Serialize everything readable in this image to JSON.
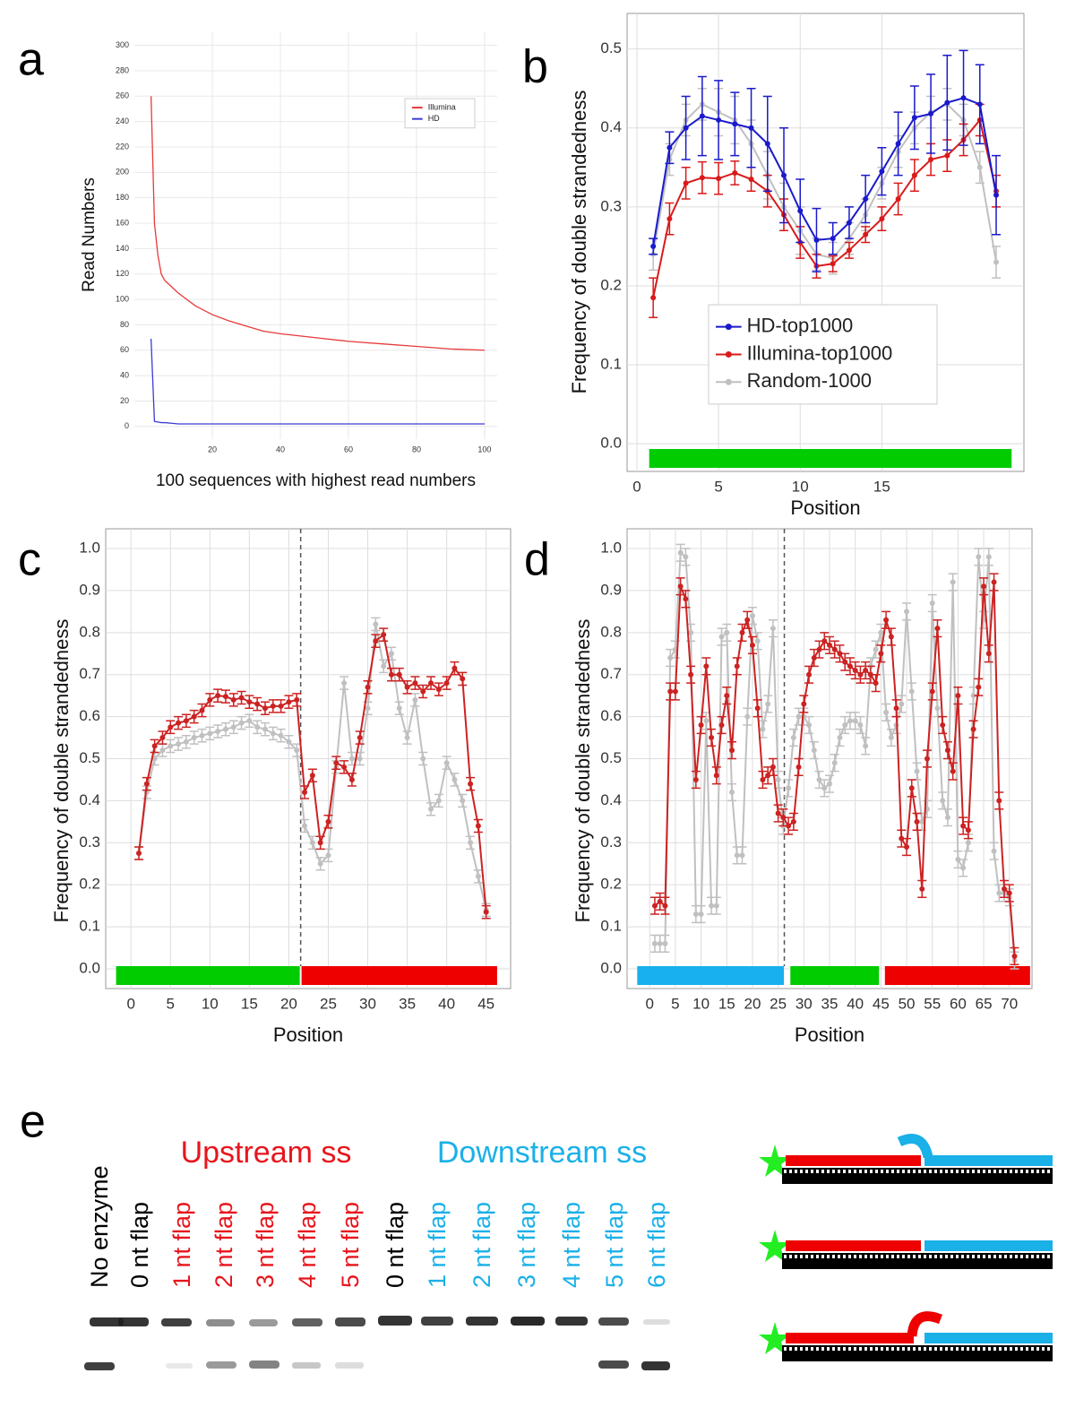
{
  "chart_data": [
    {
      "panel": "a",
      "type": "line",
      "xlabel": "100 sequences with highest read numbers",
      "ylabel": "Read Numbers",
      "xlim": [
        -2.9,
        103.7
      ],
      "ylim": [
        -10,
        311
      ],
      "xticks": [
        20,
        40,
        60,
        80,
        100
      ],
      "yticks": [
        0,
        20,
        40,
        60,
        80,
        100,
        120,
        140,
        160,
        180,
        200,
        220,
        240,
        260,
        280,
        300
      ],
      "grid": true,
      "legend": "upper right",
      "x": [
        2,
        3,
        4,
        5,
        6,
        8,
        10,
        15,
        20,
        25,
        30,
        35,
        40,
        50,
        60,
        70,
        80,
        90,
        100
      ],
      "series": [
        {
          "name": "HD",
          "color": "#3b3bd6",
          "values": [
            69,
            4,
            3.5,
            3,
            3,
            2.5,
            2,
            2,
            2,
            2,
            2,
            2,
            2,
            2,
            2,
            2,
            2,
            2,
            2
          ]
        },
        {
          "name": "Illumina",
          "color": "#e83a3a",
          "values": [
            260,
            160,
            135,
            120,
            115,
            110,
            105,
            95,
            88,
            83,
            79,
            75,
            73,
            70,
            67,
            65,
            63,
            61,
            60
          ]
        }
      ]
    },
    {
      "panel": "b",
      "type": "line",
      "xlabel": "Position",
      "ylabel": "Frequency of double strandedness",
      "xlim": [
        -0.6,
        23.7
      ],
      "ylim": [
        -0.035,
        0.545
      ],
      "xticks": [
        0,
        5,
        10,
        15
      ],
      "yticks": [
        {
          "value": 0,
          "label": "0.0"
        },
        0.1,
        0.2,
        0.3,
        0.4,
        0.5
      ],
      "grid": true,
      "legend": "lower center",
      "regions": [
        {
          "start": 0.7,
          "end": 23.0,
          "color": "#00cc00"
        }
      ],
      "x": [
        1,
        2,
        3,
        4,
        5,
        6,
        7,
        8,
        9,
        10,
        11,
        12,
        13,
        14,
        15,
        16,
        17,
        18,
        19,
        20,
        21,
        22
      ],
      "series": [
        {
          "name": "Random-1000",
          "color": "#c0c0c0",
          "values": [
            0.24,
            0.36,
            0.41,
            0.43,
            0.42,
            0.41,
            0.38,
            0.34,
            0.3,
            0.27,
            0.24,
            0.235,
            0.26,
            0.29,
            0.33,
            0.37,
            0.4,
            0.42,
            0.43,
            0.41,
            0.35,
            0.23
          ],
          "errors": [
            0.02,
            0.02,
            0.02,
            0.02,
            0.03,
            0.03,
            0.03,
            0.03,
            0.03,
            0.03,
            0.02,
            0.02,
            0.02,
            0.02,
            0.02,
            0.02,
            0.02,
            0.02,
            0.02,
            0.02,
            0.02,
            0.02
          ]
        },
        {
          "name": "Illumina-top1000",
          "color": "#d91a1a",
          "values": [
            0.185,
            0.285,
            0.33,
            0.337,
            0.336,
            0.343,
            0.335,
            0.32,
            0.29,
            0.255,
            0.225,
            0.228,
            0.245,
            0.265,
            0.285,
            0.31,
            0.34,
            0.36,
            0.365,
            0.385,
            0.41,
            0.32
          ],
          "errors": [
            0.025,
            0.02,
            0.02,
            0.02,
            0.02,
            0.015,
            0.015,
            0.02,
            0.02,
            0.02,
            0.015,
            0.01,
            0.01,
            0.01,
            0.015,
            0.02,
            0.02,
            0.02,
            0.02,
            0.02,
            0.02,
            0.02
          ]
        },
        {
          "name": "HD-top1000",
          "color": "#1a1acc",
          "values": [
            0.25,
            0.375,
            0.4,
            0.415,
            0.41,
            0.405,
            0.4,
            0.38,
            0.34,
            0.295,
            0.258,
            0.26,
            0.28,
            0.31,
            0.345,
            0.38,
            0.413,
            0.418,
            0.432,
            0.438,
            0.43,
            0.315
          ],
          "errors": [
            0.01,
            0.02,
            0.04,
            0.05,
            0.05,
            0.04,
            0.05,
            0.06,
            0.06,
            0.04,
            0.04,
            0.02,
            0.02,
            0.03,
            0.03,
            0.04,
            0.04,
            0.05,
            0.06,
            0.06,
            0.05,
            0.05
          ]
        }
      ]
    },
    {
      "panel": "c",
      "type": "line",
      "xlabel": "Position",
      "ylabel": "Frequency of double strandedness",
      "xlim": [
        -3.2,
        48.1
      ],
      "ylim": [
        -0.047,
        1.047
      ],
      "xticks": [
        0,
        5,
        10,
        15,
        20,
        25,
        30,
        35,
        40,
        45
      ],
      "yticks": [
        {
          "value": 0,
          "label": "0.0"
        },
        0.1,
        0.2,
        0.3,
        0.4,
        0.5,
        0.6,
        0.7,
        0.8,
        0.9,
        {
          "value": 1,
          "label": "1.0"
        }
      ],
      "grid": true,
      "vline": 21.5,
      "regions": [
        {
          "start": -2,
          "end": 21.5,
          "color": "#00cc00"
        },
        {
          "start": 21.5,
          "end": 46.5,
          "color": "#ee0000"
        }
      ],
      "x": [
        1,
        2,
        3,
        4,
        5,
        6,
        7,
        8,
        9,
        10,
        11,
        12,
        13,
        14,
        15,
        16,
        17,
        18,
        19,
        20,
        21,
        22,
        23,
        24,
        25,
        26,
        27,
        28,
        29,
        30,
        31,
        32,
        33,
        34,
        35,
        36,
        37,
        38,
        39,
        40,
        41,
        42,
        43,
        44,
        45
      ],
      "series": [
        {
          "color": "#c0c0c0",
          "error": 0.015,
          "values": [
            0.275,
            0.42,
            0.5,
            0.52,
            0.53,
            0.535,
            0.54,
            0.55,
            0.555,
            0.56,
            0.565,
            0.57,
            0.575,
            0.585,
            0.59,
            0.575,
            0.57,
            0.56,
            0.555,
            0.54,
            0.52,
            0.34,
            0.3,
            0.25,
            0.27,
            0.48,
            0.68,
            0.5,
            0.5,
            0.62,
            0.82,
            0.72,
            0.75,
            0.62,
            0.55,
            0.64,
            0.5,
            0.38,
            0.4,
            0.49,
            0.45,
            0.4,
            0.3,
            0.22,
            0.14
          ]
        },
        {
          "color": "#cc2222",
          "error": 0.015,
          "values": [
            0.275,
            0.44,
            0.53,
            0.55,
            0.575,
            0.585,
            0.59,
            0.6,
            0.615,
            0.64,
            0.65,
            0.648,
            0.64,
            0.645,
            0.635,
            0.63,
            0.62,
            0.625,
            0.625,
            0.635,
            0.64,
            0.42,
            0.46,
            0.3,
            0.35,
            0.49,
            0.48,
            0.45,
            0.55,
            0.67,
            0.78,
            0.795,
            0.7,
            0.7,
            0.67,
            0.68,
            0.66,
            0.68,
            0.665,
            0.68,
            0.715,
            0.69,
            0.44,
            0.34,
            0.135
          ]
        }
      ]
    },
    {
      "panel": "d",
      "type": "line",
      "xlabel": "Position",
      "ylabel": "Frequency of double strandedness",
      "xlim": [
        -4.4,
        74.4
      ],
      "ylim": [
        -0.047,
        1.047
      ],
      "xticks": [
        0,
        5,
        10,
        15,
        20,
        25,
        30,
        35,
        40,
        45,
        50,
        55,
        60,
        65,
        70
      ],
      "yticks": [
        {
          "value": 0,
          "label": "0.0"
        },
        0.1,
        0.2,
        0.3,
        0.4,
        0.5,
        0.6,
        0.7,
        0.8,
        0.9,
        {
          "value": 1,
          "label": "1.0"
        }
      ],
      "grid": true,
      "vline": 26.2,
      "regions": [
        {
          "start": -2.6,
          "end": 26.3,
          "color": "#18b0ee"
        },
        {
          "start": 27.2,
          "end": 44.8,
          "color": "#00cc00"
        },
        {
          "start": 45.6,
          "end": 74.2,
          "color": "#ee0000"
        }
      ],
      "x": [
        1,
        2,
        3,
        4,
        5,
        6,
        7,
        8,
        9,
        10,
        11,
        12,
        13,
        14,
        15,
        16,
        17,
        18,
        19,
        20,
        21,
        22,
        23,
        24,
        25,
        26,
        27,
        28,
        29,
        30,
        31,
        32,
        33,
        34,
        35,
        36,
        37,
        38,
        39,
        40,
        41,
        42,
        43,
        44,
        45,
        46,
        47,
        48,
        49,
        50,
        51,
        52,
        53,
        54,
        55,
        56,
        57,
        58,
        59,
        60,
        61,
        62,
        63,
        64,
        65,
        66,
        67,
        68,
        69,
        70,
        71
      ],
      "series": [
        {
          "color": "#c0c0c0",
          "error": 0.02,
          "values": [
            0.06,
            0.06,
            0.06,
            0.74,
            0.76,
            0.99,
            0.98,
            0.8,
            0.13,
            0.13,
            0.59,
            0.15,
            0.15,
            0.79,
            0.8,
            0.42,
            0.27,
            0.27,
            0.6,
            0.84,
            0.78,
            0.57,
            0.63,
            0.81,
            0.45,
            0.34,
            0.43,
            0.55,
            0.6,
            0.6,
            0.58,
            0.52,
            0.45,
            0.43,
            0.44,
            0.49,
            0.55,
            0.58,
            0.59,
            0.59,
            0.58,
            0.53,
            0.72,
            0.76,
            0.8,
            0.61,
            0.55,
            0.58,
            0.63,
            0.85,
            0.66,
            0.47,
            0.35,
            0.38,
            0.87,
            0.62,
            0.4,
            0.36,
            0.92,
            0.26,
            0.24,
            0.3,
            0.65,
            0.98,
            0.83,
            0.98,
            0.28,
            0.18,
            0.18,
            0.17,
            0.02
          ]
        },
        {
          "color": "#cc2222",
          "error": 0.02,
          "values": [
            0.15,
            0.16,
            0.15,
            0.66,
            0.66,
            0.91,
            0.88,
            0.7,
            0.45,
            0.58,
            0.72,
            0.55,
            0.46,
            0.58,
            0.65,
            0.52,
            0.72,
            0.8,
            0.83,
            0.77,
            0.62,
            0.45,
            0.46,
            0.48,
            0.37,
            0.36,
            0.34,
            0.35,
            0.48,
            0.63,
            0.7,
            0.74,
            0.76,
            0.78,
            0.77,
            0.76,
            0.75,
            0.73,
            0.72,
            0.71,
            0.7,
            0.71,
            0.7,
            0.68,
            0.75,
            0.83,
            0.79,
            0.62,
            0.31,
            0.29,
            0.43,
            0.35,
            0.19,
            0.5,
            0.66,
            0.81,
            0.58,
            0.52,
            0.47,
            0.65,
            0.34,
            0.33,
            0.57,
            0.67,
            0.91,
            0.75,
            0.92,
            0.4,
            0.19,
            0.18,
            0.03
          ]
        }
      ]
    }
  ],
  "panel_e": {
    "panel": "e",
    "groups": [
      {
        "label": "Upstream ss",
        "color": "#e8141c"
      },
      {
        "label": "Downstream ss",
        "color": "#1ab0e8"
      }
    ],
    "lanes": [
      {
        "label": "No enzyme",
        "color": "#000000"
      },
      {
        "label": "0 nt flap",
        "color": "#000000"
      },
      {
        "label": "1 nt flap",
        "color": "#e8141c"
      },
      {
        "label": "2 nt flap",
        "color": "#e8141c"
      },
      {
        "label": "3 nt flap",
        "color": "#e8141c"
      },
      {
        "label": "4 nt flap",
        "color": "#e8141c"
      },
      {
        "label": "5 nt flap",
        "color": "#e8141c"
      },
      {
        "label": "0 nt flap",
        "color": "#000000"
      },
      {
        "label": "1 nt flap",
        "color": "#1ab0e8"
      },
      {
        "label": "2 nt flap",
        "color": "#1ab0e8"
      },
      {
        "label": "3 nt flap",
        "color": "#1ab0e8"
      },
      {
        "label": "4 nt flap",
        "color": "#1ab0e8"
      },
      {
        "label": "5 nt flap",
        "color": "#1ab0e8"
      },
      {
        "label": "6 nt flap",
        "color": "#1ab0e8"
      }
    ]
  }
}
